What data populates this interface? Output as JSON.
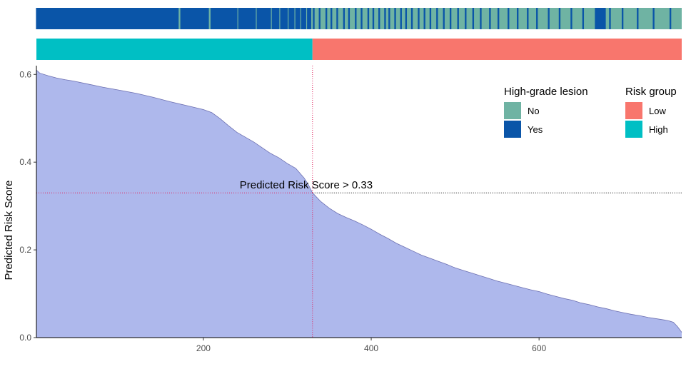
{
  "chart_data": {
    "type": "area",
    "xlabel": "",
    "ylabel": "Predicted Risk Score",
    "xlim": [
      1,
      770
    ],
    "ylim": [
      0,
      0.62
    ],
    "x_ticks": [
      200,
      400,
      600
    ],
    "y_ticks": [
      0.0,
      0.2,
      0.4,
      0.6
    ],
    "x_tick_labels": [
      "200",
      "400",
      "600"
    ],
    "y_tick_labels": [
      "0.0",
      "0.2",
      "0.4",
      "0.6"
    ],
    "grid": false,
    "fill_color": "#AEB8EC",
    "curve": {
      "x": [
        1,
        5,
        15,
        25,
        35,
        45,
        60,
        80,
        100,
        120,
        140,
        160,
        180,
        200,
        210,
        220,
        230,
        240,
        250,
        260,
        270,
        280,
        290,
        300,
        310,
        320,
        325,
        330,
        340,
        350,
        360,
        370,
        380,
        390,
        400,
        410,
        420,
        430,
        440,
        450,
        460,
        470,
        480,
        490,
        500,
        510,
        520,
        530,
        540,
        550,
        560,
        570,
        580,
        590,
        600,
        610,
        620,
        630,
        640,
        650,
        660,
        670,
        680,
        690,
        700,
        710,
        720,
        730,
        740,
        750,
        755,
        760,
        765,
        770
      ],
      "y": [
        0.61,
        0.603,
        0.597,
        0.592,
        0.588,
        0.585,
        0.579,
        0.571,
        0.564,
        0.557,
        0.548,
        0.538,
        0.529,
        0.52,
        0.513,
        0.499,
        0.483,
        0.468,
        0.457,
        0.446,
        0.433,
        0.42,
        0.41,
        0.397,
        0.386,
        0.364,
        0.349,
        0.33,
        0.31,
        0.295,
        0.283,
        0.274,
        0.266,
        0.257,
        0.247,
        0.236,
        0.226,
        0.215,
        0.206,
        0.197,
        0.188,
        0.181,
        0.174,
        0.167,
        0.159,
        0.153,
        0.147,
        0.141,
        0.135,
        0.129,
        0.124,
        0.119,
        0.114,
        0.109,
        0.105,
        0.099,
        0.094,
        0.089,
        0.085,
        0.079,
        0.075,
        0.07,
        0.066,
        0.061,
        0.057,
        0.053,
        0.05,
        0.046,
        0.043,
        0.04,
        0.038,
        0.035,
        0.025,
        0.012
      ]
    },
    "threshold": {
      "y": 0.33,
      "x": 330,
      "label": "Predicted Risk Score > 0.33"
    },
    "lesion_strip": {
      "colors": {
        "No": "#6FB3A3",
        "Yes": "#0A55A8"
      },
      "yes_runs": [
        [
          1,
          170
        ],
        [
          173,
          206
        ],
        [
          209,
          240
        ],
        [
          242,
          262
        ],
        [
          264,
          280
        ],
        [
          282,
          290
        ],
        [
          292,
          300
        ],
        [
          302,
          308
        ],
        [
          310,
          315
        ],
        [
          317,
          322
        ],
        [
          324,
          328
        ],
        [
          331,
          332
        ],
        [
          338,
          339
        ],
        [
          346,
          347
        ],
        [
          352,
          353
        ],
        [
          359,
          360
        ],
        [
          367,
          368
        ],
        [
          373,
          374
        ],
        [
          381,
          382
        ],
        [
          388,
          389
        ],
        [
          396,
          397
        ],
        [
          402,
          403
        ],
        [
          409,
          410
        ],
        [
          416,
          417
        ],
        [
          421,
          422
        ],
        [
          428,
          429
        ],
        [
          435,
          436
        ],
        [
          441,
          442
        ],
        [
          448,
          449
        ],
        [
          456,
          457
        ],
        [
          463,
          464
        ],
        [
          470,
          471
        ],
        [
          478,
          479
        ],
        [
          486,
          487
        ],
        [
          494,
          495
        ],
        [
          503,
          504
        ],
        [
          512,
          513
        ],
        [
          521,
          522
        ],
        [
          530,
          531
        ],
        [
          541,
          542
        ],
        [
          551,
          552
        ],
        [
          563,
          564
        ],
        [
          574,
          575
        ],
        [
          586,
          587
        ],
        [
          597,
          598
        ],
        [
          611,
          612
        ],
        [
          624,
          625
        ],
        [
          638,
          639
        ],
        [
          652,
          653
        ],
        [
          667,
          679
        ],
        [
          684,
          685
        ],
        [
          699,
          700
        ],
        [
          717,
          718
        ],
        [
          736,
          737
        ],
        [
          756,
          757
        ]
      ]
    },
    "risk_strip": {
      "colors": {
        "Low": "#F8766D",
        "High": "#00BFC4"
      },
      "high_end_x": 330
    },
    "legends": [
      {
        "title": "High-grade lesion",
        "entries": [
          {
            "label": "No",
            "color": "#6FB3A3"
          },
          {
            "label": "Yes",
            "color": "#0A55A8"
          }
        ]
      },
      {
        "title": "Risk group",
        "entries": [
          {
            "label": "Low",
            "color": "#F8766D"
          },
          {
            "label": "High",
            "color": "#00BFC4"
          }
        ]
      }
    ],
    "legend_position": "top-right"
  }
}
